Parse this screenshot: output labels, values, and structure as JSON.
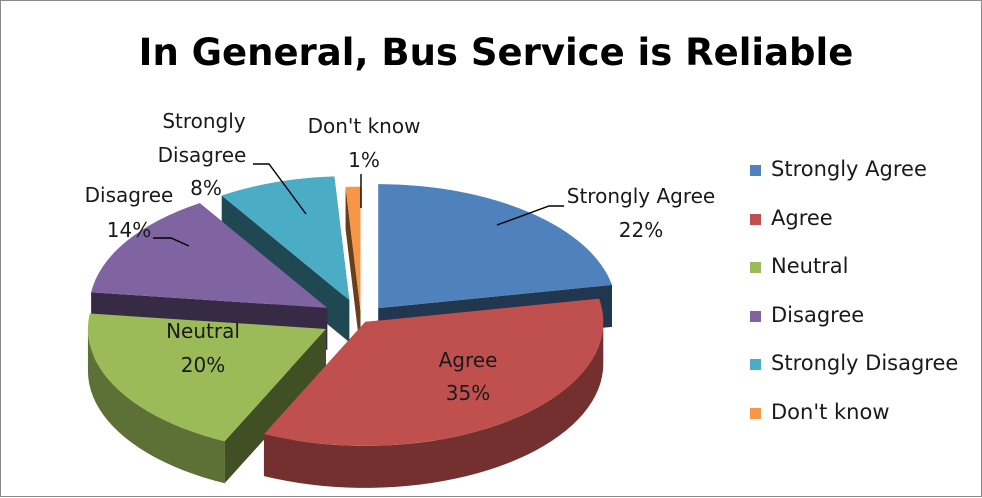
{
  "chart_data": {
    "type": "pie",
    "title": "In General, Bus Service is Reliable",
    "slices": [
      {
        "label": "Strongly Agree",
        "value": 22,
        "pct": "22%",
        "color": "#4f81bd"
      },
      {
        "label": "Agree",
        "value": 35,
        "pct": "35%",
        "color": "#c0504d"
      },
      {
        "label": "Neutral",
        "value": 20,
        "pct": "20%",
        "color": "#9bbb59"
      },
      {
        "label": "Disagree",
        "value": 14,
        "pct": "14%",
        "color": "#8064a2"
      },
      {
        "label": "Strongly Disagree",
        "value": 8,
        "pct": "8%",
        "color": "#4bacc6"
      },
      {
        "label": "Don't know",
        "value": 1,
        "pct": "1%",
        "color": "#f79646"
      }
    ],
    "exploded": true,
    "legend_position": "right"
  }
}
